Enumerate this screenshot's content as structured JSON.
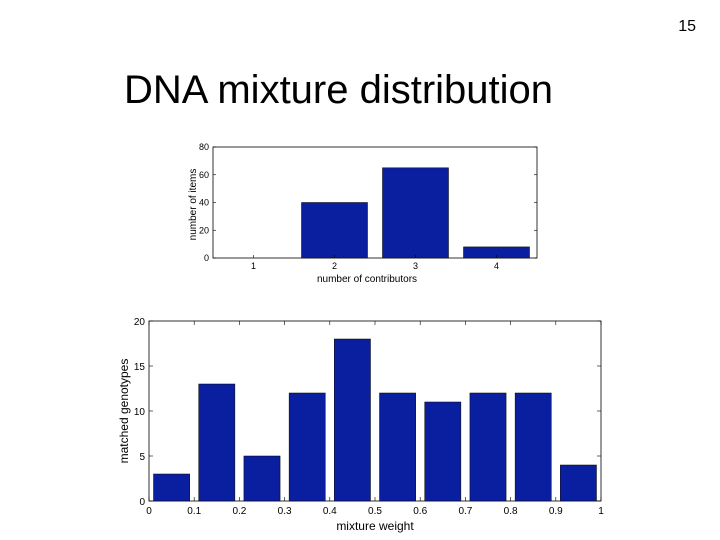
{
  "slide": {
    "number": "15",
    "title": "DNA mixture distribution"
  },
  "chart_data": [
    {
      "type": "bar",
      "title": "",
      "xlabel": "number of contributors",
      "ylabel": "number of items",
      "categories": [
        "1",
        "2",
        "3",
        "4"
      ],
      "values": [
        0,
        40,
        65,
        8
      ],
      "ylim": [
        0,
        80
      ],
      "yticks": [
        0,
        20,
        40,
        60,
        80
      ],
      "bar_color": "#0a1fa0",
      "grid": false,
      "legend": "none"
    },
    {
      "type": "bar",
      "title": "",
      "xlabel": "mixture weight",
      "ylabel": "matched genotypes",
      "x": [
        0.05,
        0.15,
        0.25,
        0.35,
        0.45,
        0.55,
        0.65,
        0.75,
        0.85,
        0.95
      ],
      "values": [
        3,
        13,
        5,
        12,
        18,
        12,
        11,
        12,
        12,
        4
      ],
      "xlim": [
        0,
        1
      ],
      "ylim": [
        0,
        20
      ],
      "xticks": [
        "0",
        "0.1",
        "0.2",
        "0.3",
        "0.4",
        "0.5",
        "0.6",
        "0.7",
        "0.8",
        "0.9",
        "1"
      ],
      "yticks": [
        0,
        5,
        10,
        15,
        20
      ],
      "bar_color": "#0a1fa0",
      "grid": false,
      "legend": "none"
    }
  ]
}
